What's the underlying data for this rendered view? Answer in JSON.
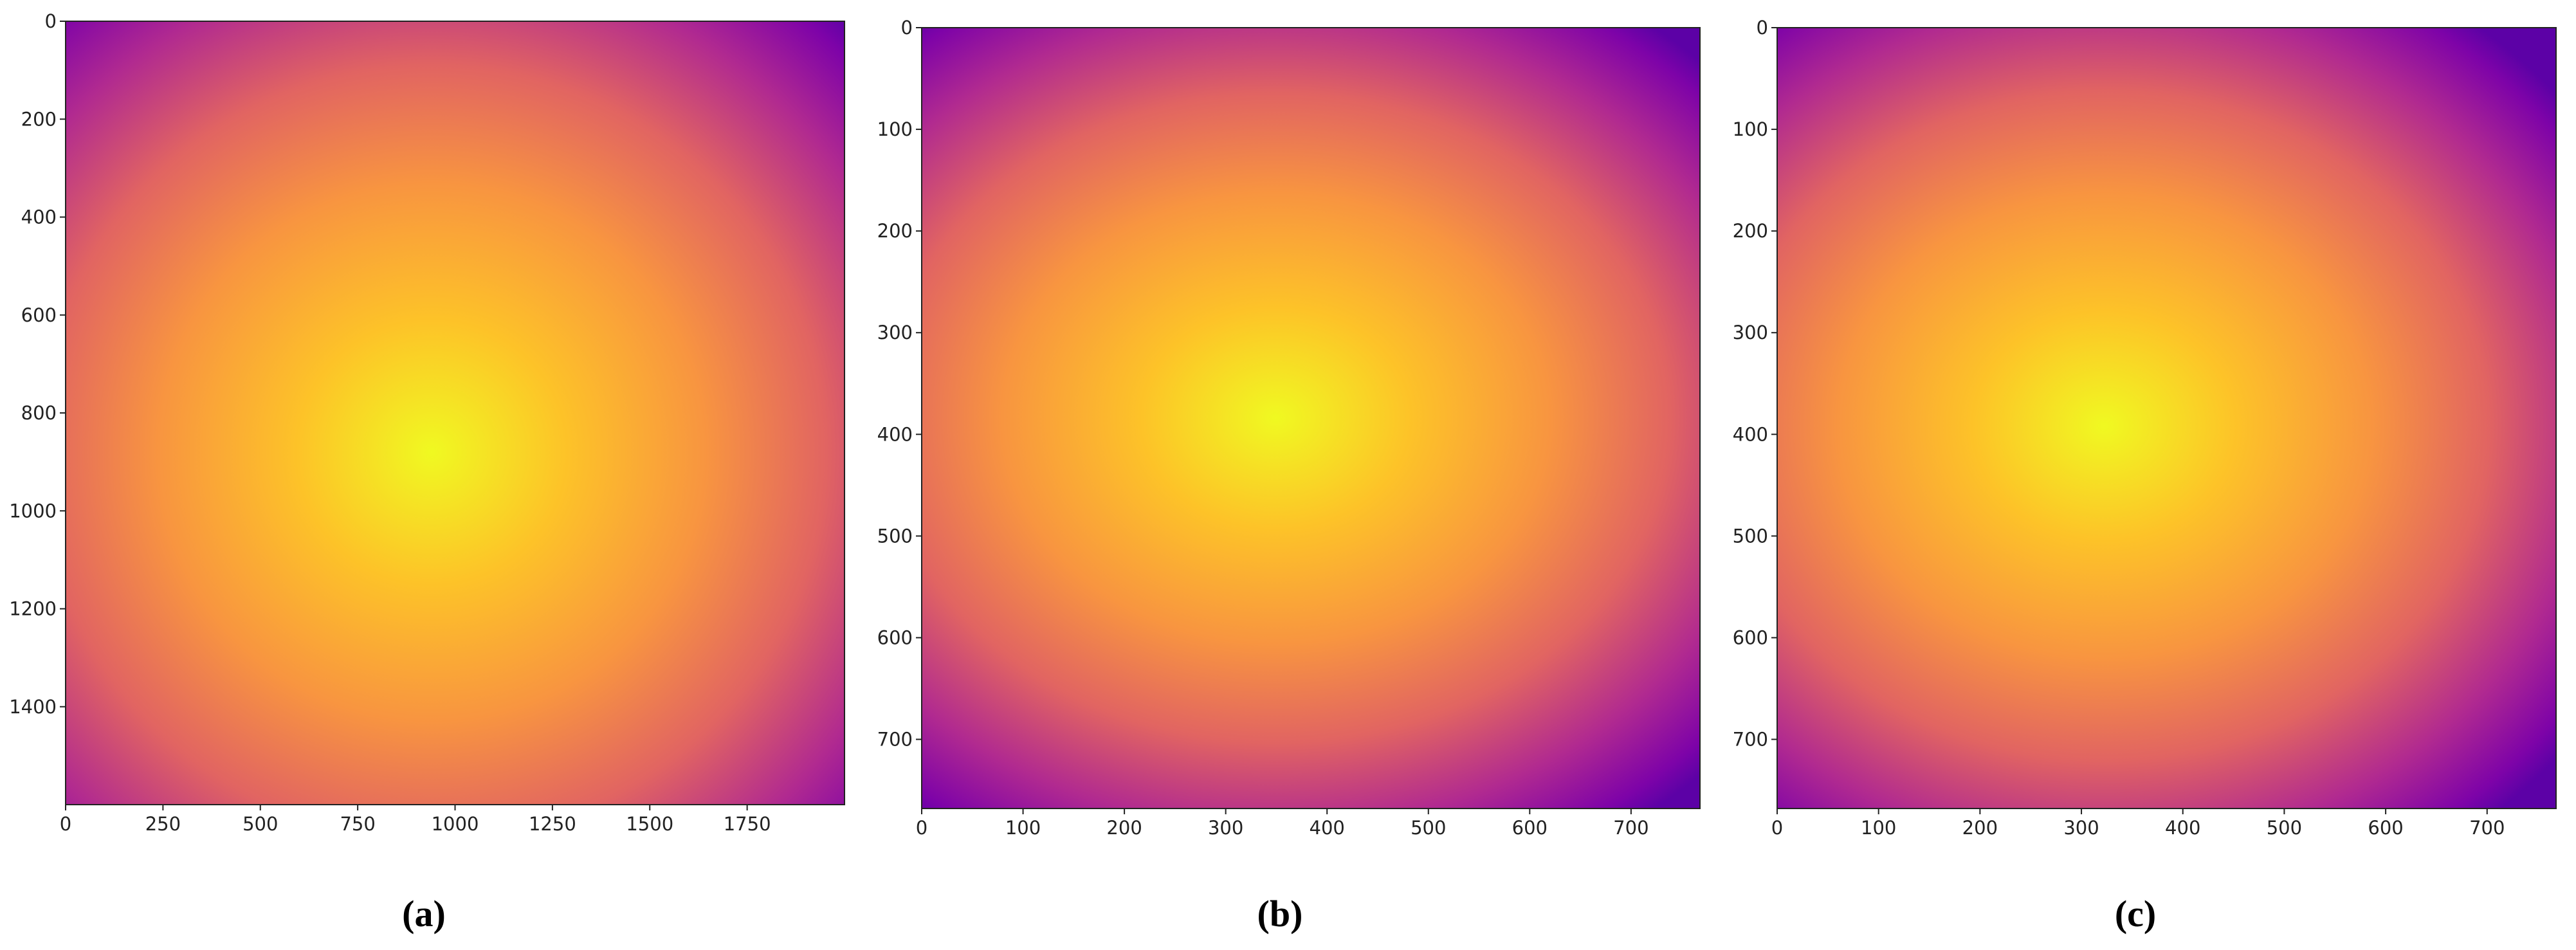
{
  "chart_data": [
    {
      "type": "image",
      "caption": "(a)",
      "colormap": "plasma",
      "xlim": [
        0,
        2000
      ],
      "ylim": [
        1600,
        0
      ],
      "xticks": [
        0,
        250,
        500,
        750,
        1000,
        1250,
        1500,
        1750
      ],
      "yticks": [
        0,
        200,
        400,
        600,
        800,
        1000,
        1200,
        1400
      ]
    },
    {
      "type": "image",
      "caption": "(b)",
      "colormap": "plasma",
      "xlim": [
        0,
        768
      ],
      "ylim": [
        768,
        0
      ],
      "xticks": [
        0,
        100,
        200,
        300,
        400,
        500,
        600,
        700
      ],
      "yticks": [
        0,
        100,
        200,
        300,
        400,
        500,
        600,
        700
      ]
    },
    {
      "type": "image",
      "caption": "(c)",
      "colormap": "plasma",
      "xlim": [
        0,
        768
      ],
      "ylim": [
        768,
        0
      ],
      "xticks": [
        0,
        100,
        200,
        300,
        400,
        500,
        600,
        700
      ],
      "yticks": [
        0,
        100,
        200,
        300,
        400,
        500,
        600,
        700
      ]
    }
  ]
}
